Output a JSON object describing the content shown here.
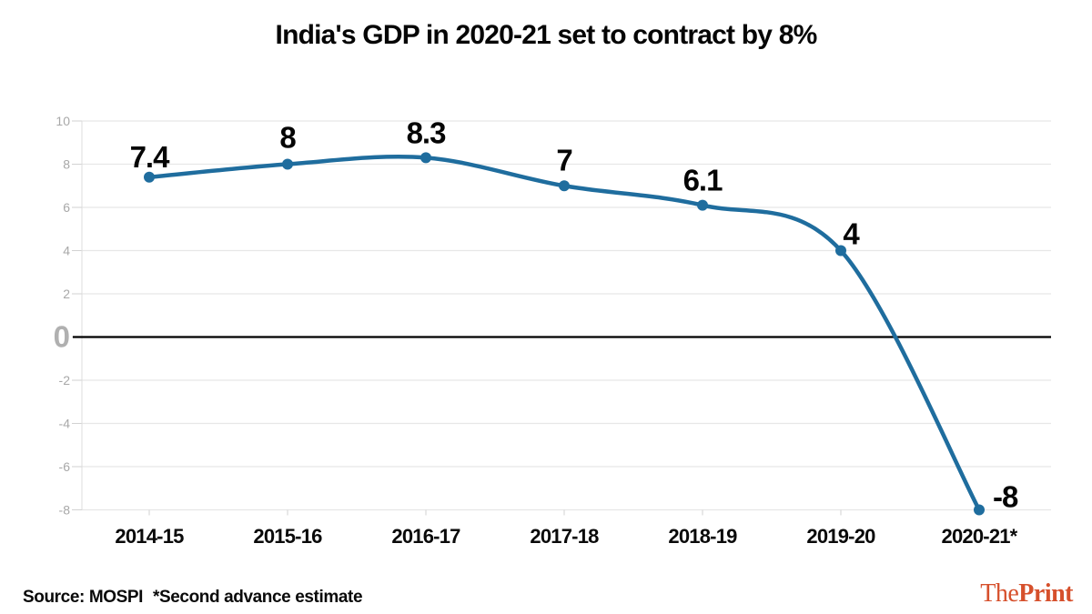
{
  "title": "India's GDP in 2020-21 set to contract by 8%",
  "chart_data": {
    "type": "line",
    "title": "India's GDP in 2020-21 set to contract by 8%",
    "categories": [
      "2014-15",
      "2015-16",
      "2016-17",
      "2017-18",
      "2018-19",
      "2019-20",
      "2020-21*"
    ],
    "values": [
      7.4,
      8,
      8.3,
      7,
      6.1,
      4,
      -8
    ],
    "point_labels": [
      "7.4",
      "8",
      "8.3",
      "7",
      "6.1",
      "4",
      "-8"
    ],
    "y_ticks": [
      10,
      8,
      6,
      4,
      2,
      0,
      -2,
      -4,
      -6,
      -8
    ],
    "ylim": [
      -8,
      10
    ],
    "xlabel": "",
    "ylabel": "",
    "grid": "on",
    "legend": "none",
    "zero_line": true,
    "colors": {
      "line": "#1f6d9e",
      "point": "#1f6d9e",
      "grid": "#e7e7e7",
      "axis": "#dcdcdc",
      "tick": "#d2d2d2",
      "zero_line": "#000000",
      "y_tick_label": "#a8a8a8",
      "zero_tick_label": "#b0b0b0",
      "x_tick_label": "#0a0a0a",
      "value_label": "#050505"
    }
  },
  "footer": {
    "source": "Source: MOSPI",
    "note": "*Second advance estimate",
    "logo": {
      "part1": "The",
      "part2": "Print",
      "color": "#d6502c"
    }
  }
}
